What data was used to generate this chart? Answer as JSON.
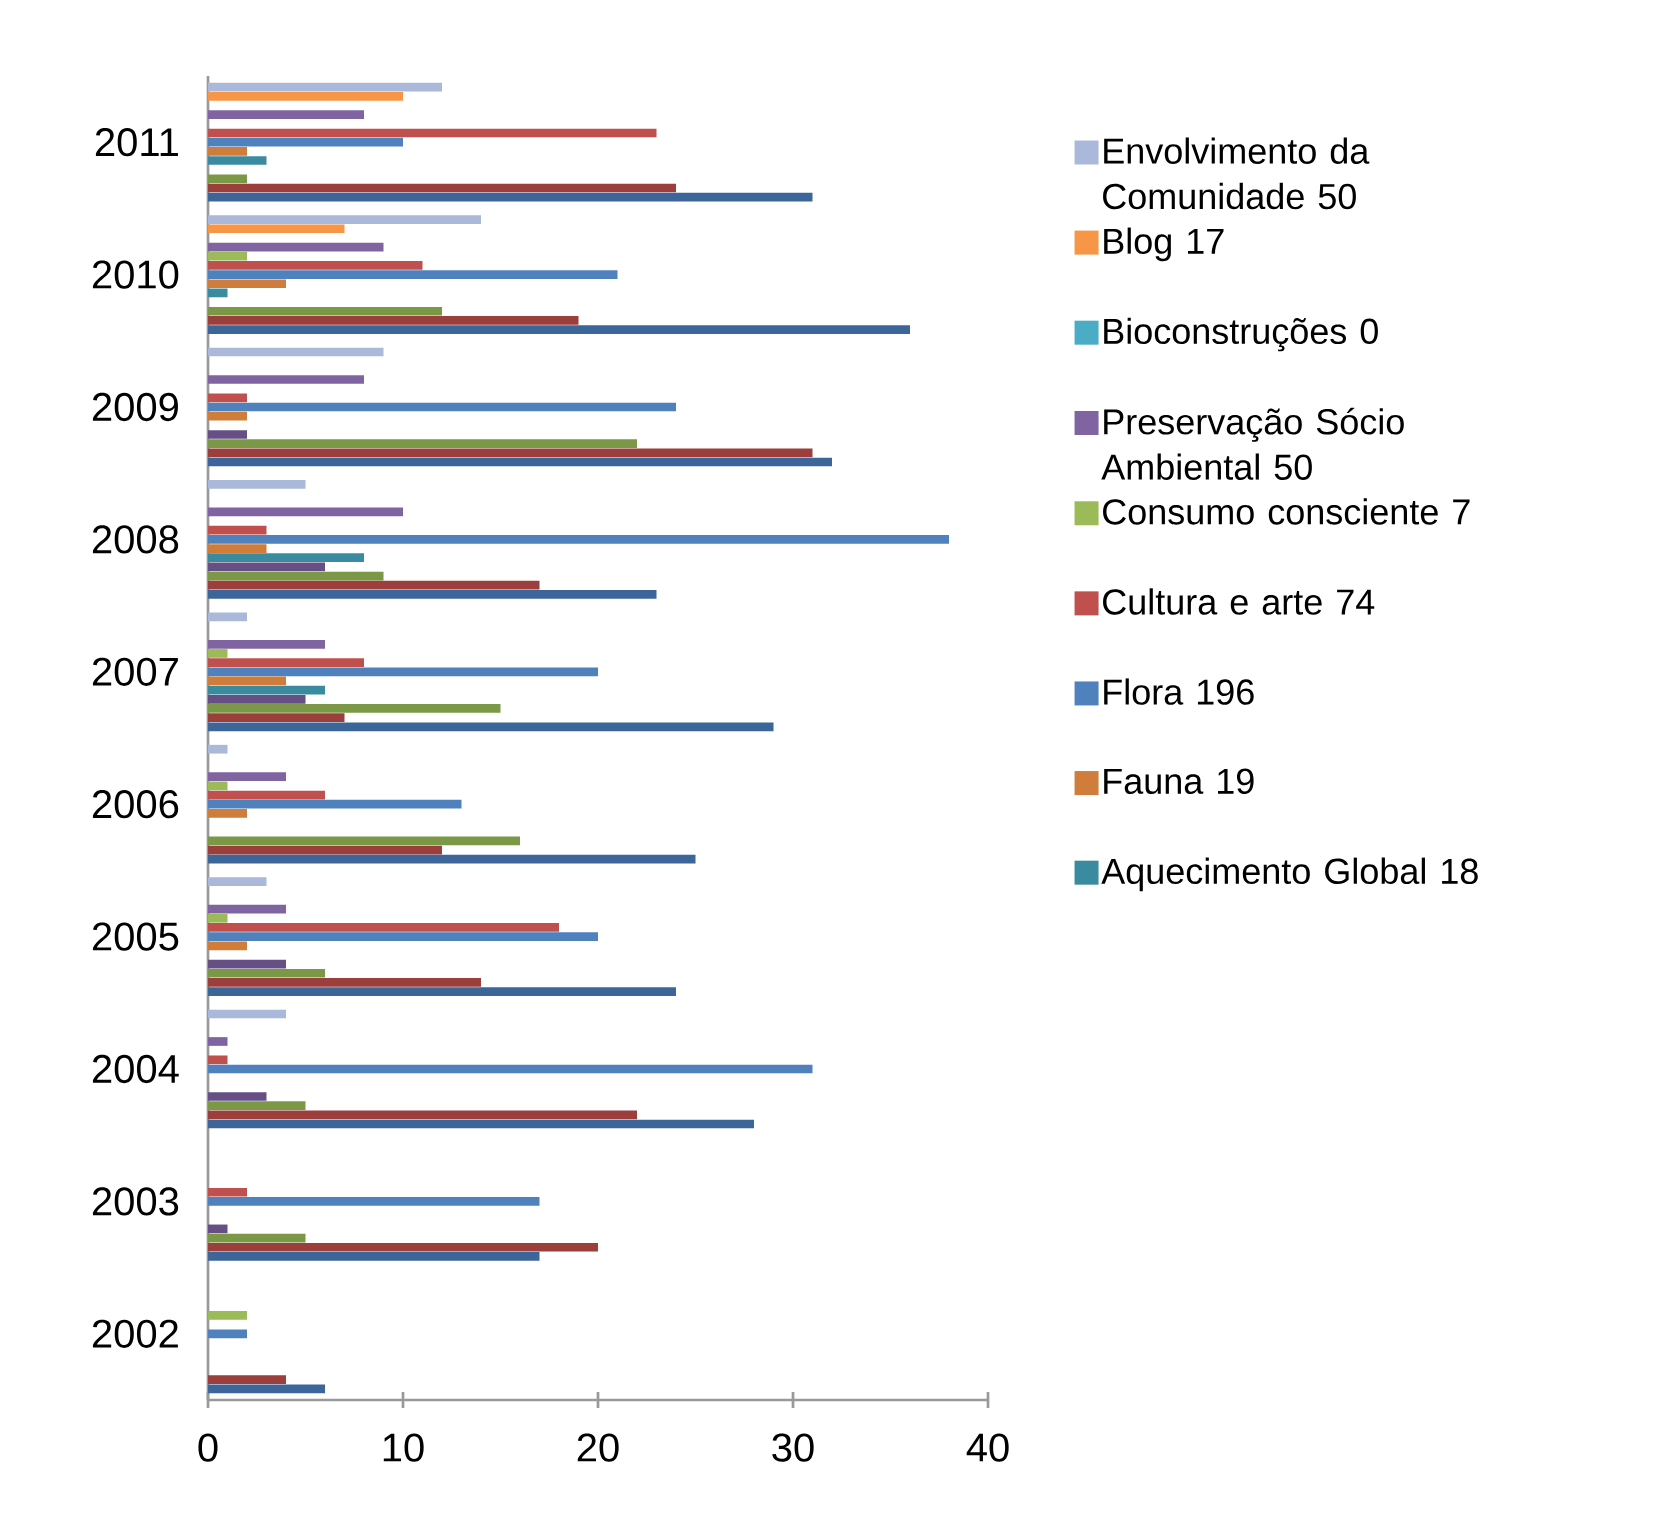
{
  "chart_data": {
    "type": "bar",
    "orientation": "horizontal",
    "categories": [
      "2011",
      "2010",
      "2009",
      "2008",
      "2007",
      "2006",
      "2005",
      "2004",
      "2003",
      "2002"
    ],
    "series": [
      {
        "name": "Envolvimento da Comunidade 50",
        "color": "#aab9d9",
        "values": [
          12,
          14,
          9,
          5,
          2,
          1,
          3,
          4,
          0,
          0
        ]
      },
      {
        "name": "Blog 17",
        "color": "#f79646",
        "values": [
          10,
          7,
          0,
          0,
          0,
          0,
          0,
          0,
          0,
          0
        ]
      },
      {
        "name": "Bioconstruções 0",
        "color": "#4bacc6",
        "values": [
          0,
          0,
          0,
          0,
          0,
          0,
          0,
          0,
          0,
          0
        ]
      },
      {
        "name": "Preservação Sócio Ambiental 50",
        "color": "#8064a2",
        "values": [
          8,
          9,
          8,
          10,
          6,
          4,
          4,
          1,
          0,
          0
        ]
      },
      {
        "name": "Consumo consciente 7",
        "color": "#9bbb59",
        "values": [
          0,
          2,
          0,
          0,
          1,
          1,
          1,
          0,
          0,
          2
        ]
      },
      {
        "name": "Cultura e arte 74",
        "color": "#c0504d",
        "values": [
          23,
          11,
          2,
          3,
          8,
          6,
          18,
          1,
          2,
          0
        ]
      },
      {
        "name": "Flora 196",
        "color": "#4f81bd",
        "values": [
          10,
          21,
          24,
          38,
          20,
          13,
          20,
          31,
          17,
          2
        ]
      },
      {
        "name": "Fauna 19",
        "color": "#d07c3a",
        "values": [
          2,
          4,
          2,
          3,
          4,
          2,
          2,
          0,
          0,
          0
        ]
      },
      {
        "name": "Aquecimento Global 18",
        "color": "#3b8ba0",
        "values": [
          3,
          1,
          0,
          8,
          6,
          0,
          0,
          0,
          0,
          0
        ]
      },
      {
        "color": "#664f84",
        "values": [
          0,
          0,
          2,
          6,
          5,
          0,
          4,
          3,
          1,
          0
        ]
      },
      {
        "color": "#7a9846",
        "values": [
          2,
          12,
          22,
          9,
          15,
          16,
          6,
          5,
          5,
          0
        ]
      },
      {
        "color": "#9b3e3c",
        "values": [
          24,
          19,
          31,
          17,
          7,
          12,
          14,
          22,
          20,
          4
        ]
      },
      {
        "color": "#3c669a",
        "values": [
          31,
          36,
          32,
          23,
          29,
          25,
          24,
          28,
          17,
          6
        ]
      }
    ],
    "xlim": [
      0,
      40
    ],
    "xticks": [
      0,
      10,
      20,
      30,
      40
    ],
    "grid": false,
    "legend": "right"
  }
}
